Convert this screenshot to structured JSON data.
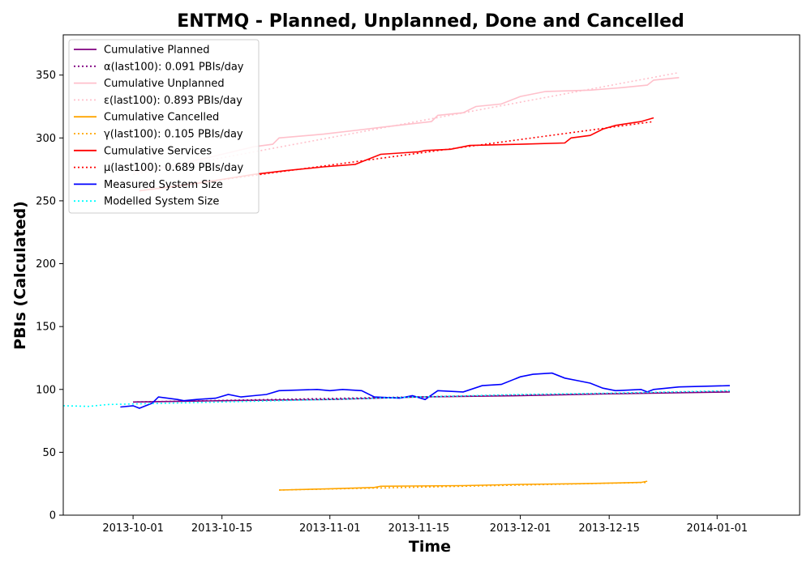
{
  "chart_data": {
    "type": "line",
    "title": "ENTMQ - Planned, Unplanned, Done  and Cancelled",
    "xlabel": "Time",
    "ylabel": "PBIs (Calculated)",
    "xlim": [
      "2013-09-20",
      "2014-01-14"
    ],
    "ylim": [
      0,
      382
    ],
    "x_ticks": [
      "2013-10-01",
      "2013-10-15",
      "2013-11-01",
      "2013-11-15",
      "2013-12-01",
      "2013-12-15",
      "2014-01-01"
    ],
    "y_ticks": [
      0,
      50,
      100,
      150,
      200,
      250,
      300,
      350
    ],
    "grid": false,
    "legend_position": "upper-left",
    "series": [
      {
        "name": "Cumulative Planned",
        "color": "#800080",
        "style": "solid",
        "points": [
          [
            "2013-10-01",
            90
          ],
          [
            "2013-10-15",
            91
          ],
          [
            "2013-11-01",
            92
          ],
          [
            "2013-11-15",
            94
          ],
          [
            "2013-12-01",
            95
          ],
          [
            "2013-12-15",
            96.5
          ],
          [
            "2014-01-03",
            98
          ]
        ]
      },
      {
        "name": "α(last100): 0.091 PBIs/day",
        "color": "#800080",
        "style": "dotted",
        "points": [
          [
            "2013-10-01",
            90
          ],
          [
            "2014-01-03",
            98.5
          ]
        ]
      },
      {
        "name": "Cumulative Unplanned",
        "color": "#ffc0cb",
        "style": "solid",
        "points": [
          [
            "2013-10-01",
            273
          ],
          [
            "2013-10-05",
            276
          ],
          [
            "2013-10-10",
            281
          ],
          [
            "2013-10-15",
            287
          ],
          [
            "2013-10-20",
            293
          ],
          [
            "2013-10-23",
            295
          ],
          [
            "2013-10-24",
            300
          ],
          [
            "2013-10-31",
            303
          ],
          [
            "2013-11-05",
            306
          ],
          [
            "2013-11-10",
            309
          ],
          [
            "2013-11-17",
            313
          ],
          [
            "2013-11-18",
            318
          ],
          [
            "2013-11-22",
            320
          ],
          [
            "2013-11-24",
            325
          ],
          [
            "2013-11-28",
            327
          ],
          [
            "2013-12-01",
            333
          ],
          [
            "2013-12-05",
            337
          ],
          [
            "2013-12-12",
            338
          ],
          [
            "2013-12-17",
            340
          ],
          [
            "2013-12-21",
            342
          ],
          [
            "2013-12-22",
            346
          ],
          [
            "2013-12-26",
            348
          ]
        ]
      },
      {
        "name": "ε(last100): 0.893 PBIs/day",
        "color": "#ffc0cb",
        "style": "dotted",
        "points": [
          [
            "2013-10-01",
            271
          ],
          [
            "2013-12-26",
            352
          ]
        ]
      },
      {
        "name": "Cumulative Cancelled",
        "color": "#ffa500",
        "style": "solid",
        "points": [
          [
            "2013-10-24",
            20
          ],
          [
            "2013-11-01",
            21
          ],
          [
            "2013-11-08",
            22
          ],
          [
            "2013-11-09",
            23
          ],
          [
            "2013-11-22",
            23.5
          ],
          [
            "2013-12-01",
            24.5
          ],
          [
            "2013-12-10",
            25
          ],
          [
            "2013-12-20",
            26
          ],
          [
            "2013-12-21",
            27
          ]
        ]
      },
      {
        "name": "γ(last100): 0.105 PBIs/day",
        "color": "#ffa500",
        "style": "dotted",
        "points": [
          [
            "2013-10-24",
            20
          ],
          [
            "2013-12-21",
            26
          ]
        ]
      },
      {
        "name": "Cumulative Services",
        "color": "#ff0000",
        "style": "solid",
        "points": [
          [
            "2013-10-02",
            258
          ],
          [
            "2013-10-10",
            263
          ],
          [
            "2013-10-15",
            267
          ],
          [
            "2013-10-20",
            271
          ],
          [
            "2013-10-25",
            274
          ],
          [
            "2013-10-31",
            277
          ],
          [
            "2013-11-05",
            279
          ],
          [
            "2013-11-06",
            281
          ],
          [
            "2013-11-09",
            287
          ],
          [
            "2013-11-15",
            289
          ],
          [
            "2013-11-16",
            290
          ],
          [
            "2013-11-20",
            291
          ],
          [
            "2013-11-23",
            294
          ],
          [
            "2013-12-01",
            295
          ],
          [
            "2013-12-08",
            296
          ],
          [
            "2013-12-09",
            300
          ],
          [
            "2013-12-12",
            302
          ],
          [
            "2013-12-14",
            307
          ],
          [
            "2013-12-16",
            310
          ],
          [
            "2013-12-20",
            313
          ],
          [
            "2013-12-22",
            316
          ]
        ]
      },
      {
        "name": "μ(last100): 0.689 PBIs/day",
        "color": "#ff0000",
        "style": "dotted",
        "points": [
          [
            "2013-10-02",
            258
          ],
          [
            "2013-12-22",
            313
          ]
        ]
      },
      {
        "name": "Measured System Size",
        "color": "#0000ff",
        "style": "solid",
        "points": [
          [
            "2013-09-29",
            86
          ],
          [
            "2013-10-01",
            87
          ],
          [
            "2013-10-02",
            85
          ],
          [
            "2013-10-04",
            89
          ],
          [
            "2013-10-05",
            94
          ],
          [
            "2013-10-08",
            92
          ],
          [
            "2013-10-09",
            91
          ],
          [
            "2013-10-11",
            92
          ],
          [
            "2013-10-14",
            93
          ],
          [
            "2013-10-16",
            96
          ],
          [
            "2013-10-18",
            94
          ],
          [
            "2013-10-20",
            95
          ],
          [
            "2013-10-22",
            96
          ],
          [
            "2013-10-24",
            99
          ],
          [
            "2013-10-30",
            100
          ],
          [
            "2013-11-01",
            99
          ],
          [
            "2013-11-03",
            100
          ],
          [
            "2013-11-06",
            99
          ],
          [
            "2013-11-08",
            94
          ],
          [
            "2013-11-12",
            93
          ],
          [
            "2013-11-14",
            95
          ],
          [
            "2013-11-16",
            92
          ],
          [
            "2013-11-18",
            99
          ],
          [
            "2013-11-22",
            98
          ],
          [
            "2013-11-25",
            103
          ],
          [
            "2013-11-28",
            104
          ],
          [
            "2013-12-01",
            110
          ],
          [
            "2013-12-03",
            112
          ],
          [
            "2013-12-06",
            113
          ],
          [
            "2013-12-08",
            109
          ],
          [
            "2013-12-10",
            107
          ],
          [
            "2013-12-12",
            105
          ],
          [
            "2013-12-14",
            101
          ],
          [
            "2013-12-16",
            99
          ],
          [
            "2013-12-20",
            100
          ],
          [
            "2013-12-21",
            98
          ],
          [
            "2013-12-22",
            100
          ],
          [
            "2013-12-26",
            102
          ],
          [
            "2014-01-03",
            103
          ]
        ]
      },
      {
        "name": "Modelled System Size",
        "color": "#00ffff",
        "style": "dotted",
        "points": [
          [
            "2013-09-20",
            87
          ],
          [
            "2013-09-24",
            86.5
          ],
          [
            "2013-09-27",
            88
          ],
          [
            "2013-10-15",
            90
          ],
          [
            "2013-11-01",
            92
          ],
          [
            "2013-11-15",
            94
          ],
          [
            "2013-12-01",
            96
          ],
          [
            "2013-12-15",
            97
          ],
          [
            "2014-01-03",
            99
          ]
        ]
      }
    ]
  }
}
